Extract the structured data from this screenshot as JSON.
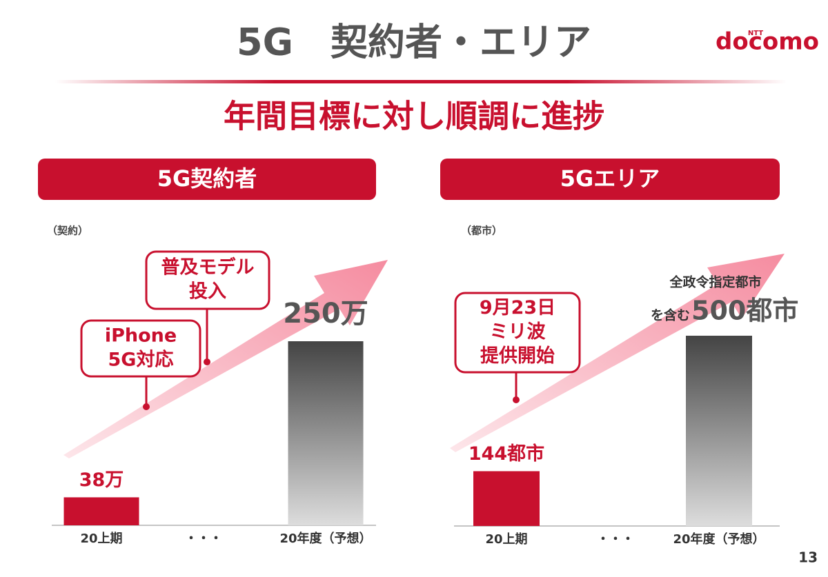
{
  "slide": {
    "title": "5G　契約者・エリア",
    "logo_small": "NTT",
    "logo": "docomo",
    "headline": "年間目標に対し順調に進捗",
    "page_number": "13"
  },
  "chart_data": [
    {
      "type": "bar",
      "title": "5G契約者",
      "unit_label": "（契約）",
      "categories": [
        "20上期",
        "・・・",
        "20年度（予想）"
      ],
      "values": [
        38,
        null,
        250
      ],
      "value_labels": [
        "38万",
        null,
        "250万"
      ],
      "colors": [
        "#c8102e",
        null,
        "#7a7a7a"
      ],
      "annotations": [
        [
          "iPhone",
          "5G対応"
        ],
        [
          "普及モデル",
          "投入"
        ]
      ]
    },
    {
      "type": "bar",
      "title": "5Gエリア",
      "unit_label": "（都市）",
      "categories": [
        "20上期",
        "・・・",
        "20年度（予想）"
      ],
      "values": [
        144,
        null,
        500
      ],
      "value_labels": [
        "144都市",
        null,
        "500都市"
      ],
      "colors": [
        "#c8102e",
        null,
        "#7a7a7a"
      ],
      "target_note": [
        "全政令指定都市",
        "を含む"
      ],
      "annotations": [
        [
          "9月23日",
          "ミリ波",
          "提供開始"
        ]
      ]
    }
  ]
}
